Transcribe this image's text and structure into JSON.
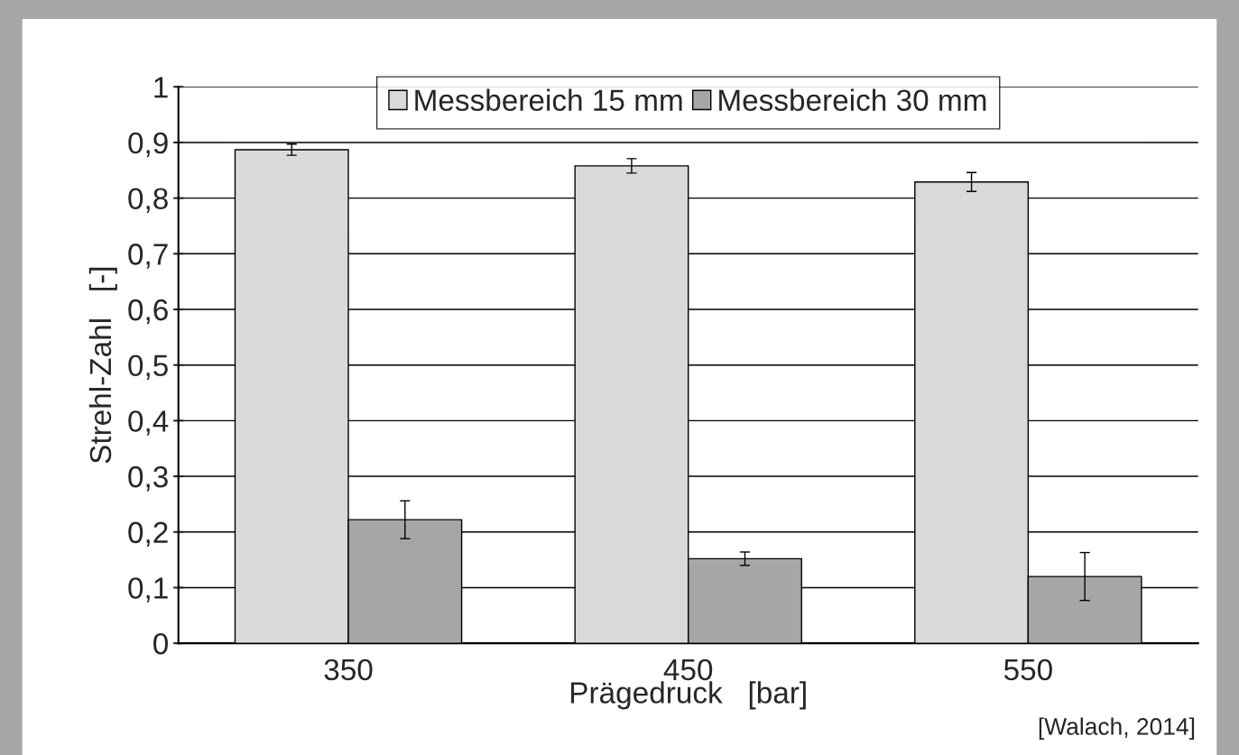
{
  "chart_data": {
    "type": "bar",
    "xlabel": "Prägedruck   [bar]",
    "ylabel": "Strehl-Zahl   [-]",
    "categories": [
      "350",
      "450",
      "550"
    ],
    "series": [
      {
        "name": "Messbereich 15 mm",
        "color": "#d9d9d9",
        "values": [
          0.887,
          0.858,
          0.829
        ],
        "errors": [
          0.01,
          0.013,
          0.017
        ]
      },
      {
        "name": "Messbereich 30 mm",
        "color": "#a6a6a6",
        "values": [
          0.222,
          0.152,
          0.12
        ],
        "errors": [
          0.034,
          0.012,
          0.043
        ]
      }
    ],
    "ylim": [
      0,
      1
    ],
    "yticks": [
      0,
      {
        "value": 0.1,
        "label": "0,1"
      },
      {
        "value": 0.2,
        "label": "0,2"
      },
      {
        "value": 0.3,
        "label": "0,3"
      },
      {
        "value": 0.4,
        "label": "0,4"
      },
      {
        "value": 0.5,
        "label": "0,5"
      },
      {
        "value": 0.6,
        "label": "0,6"
      },
      {
        "value": 0.7,
        "label": "0,7"
      },
      {
        "value": 0.8,
        "label": "0,8"
      },
      {
        "value": 0.9,
        "label": "0,9"
      },
      1
    ],
    "grid": "y",
    "legend": "top",
    "annotations": [
      "[Walach, 2014]"
    ]
  }
}
